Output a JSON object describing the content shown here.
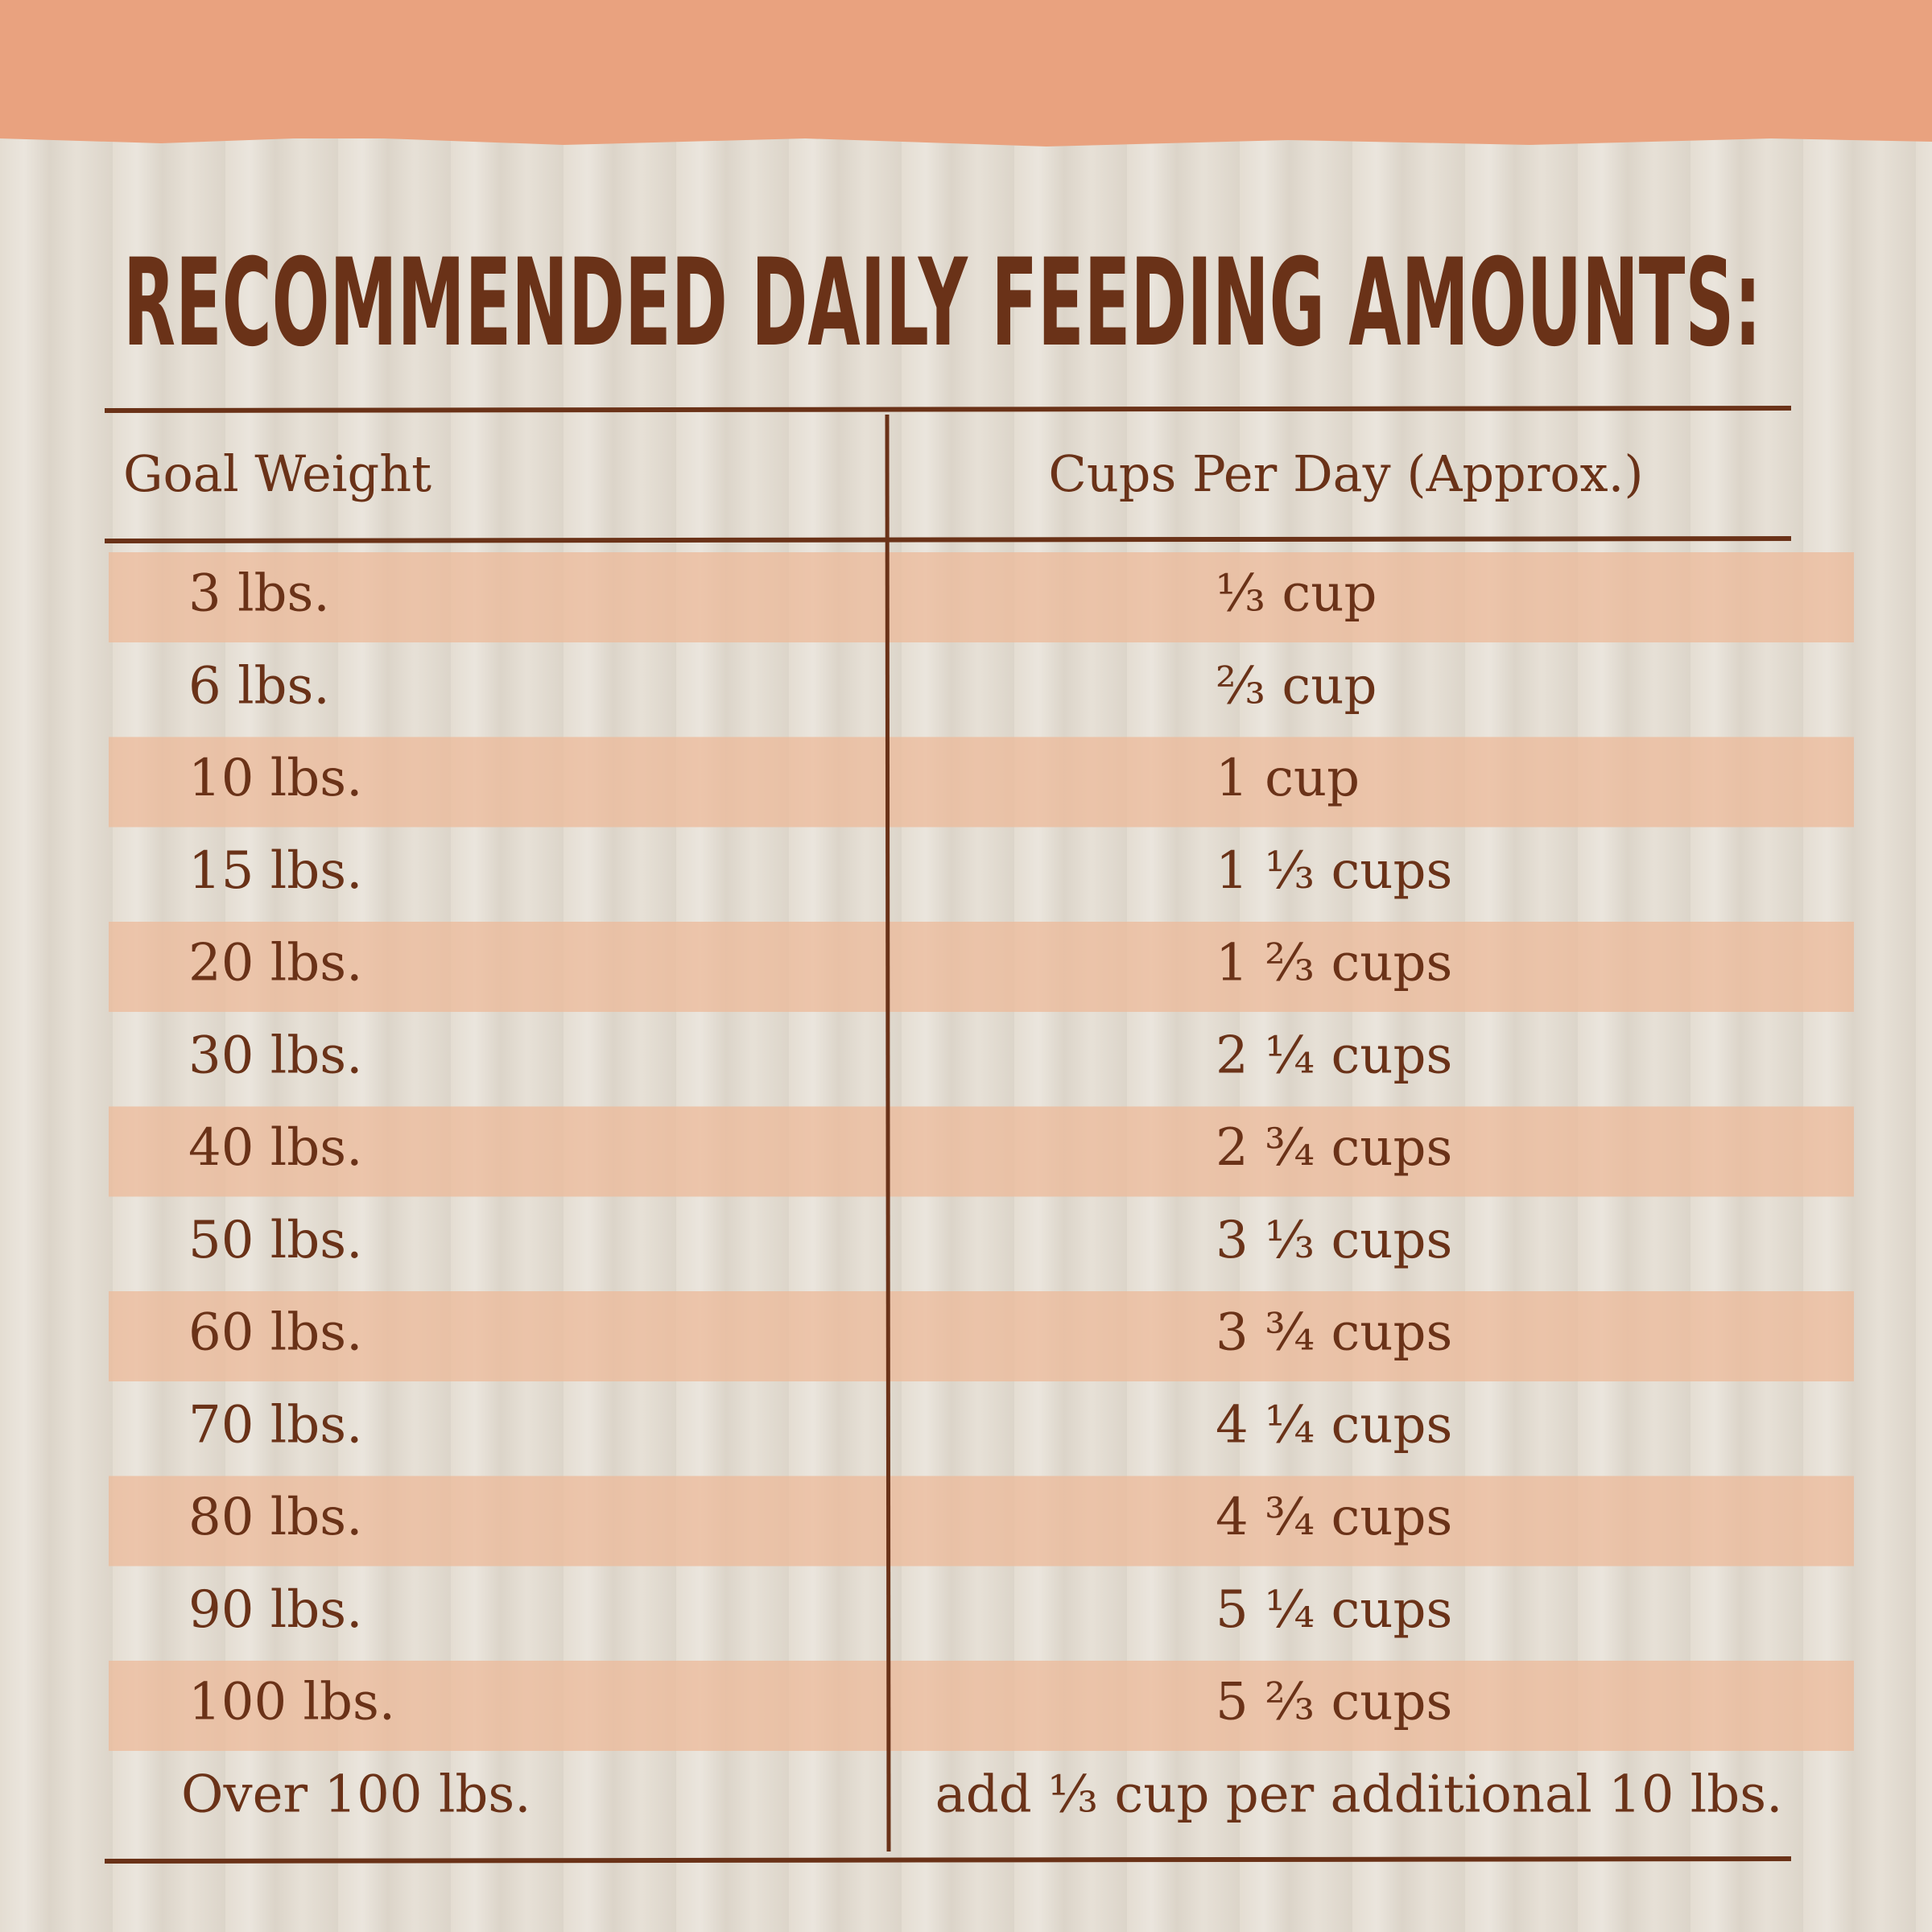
{
  "header": {
    "title": "RECOMMENDED DAILY FEEDING AMOUNTS:"
  },
  "table": {
    "headers": [
      "Goal Weight",
      "Cups Per Day (Approx.)"
    ],
    "rows": [
      [
        "3 lbs.",
        "⅓ cup"
      ],
      [
        "6 lbs.",
        "⅔ cup"
      ],
      [
        "10 lbs.",
        "1 cup"
      ],
      [
        "15 lbs.",
        "1 ⅓ cups"
      ],
      [
        "20 lbs.",
        "1 ⅔ cups"
      ],
      [
        "30 lbs.",
        "2 ¼ cups"
      ],
      [
        "40 lbs.",
        "2 ¾ cups"
      ],
      [
        "50 lbs.",
        "3 ⅓ cups"
      ],
      [
        "60 lbs.",
        "3 ¾ cups"
      ],
      [
        "70 lbs.",
        "4 ¼ cups"
      ],
      [
        "80 lbs.",
        "4 ¾ cups"
      ],
      [
        "90 lbs.",
        "5 ¼ cups"
      ],
      [
        "100 lbs.",
        "5 ⅔ cups"
      ],
      [
        "Over 100 lbs.",
        "add ⅓ cup per additional 10 lbs."
      ]
    ]
  }
}
